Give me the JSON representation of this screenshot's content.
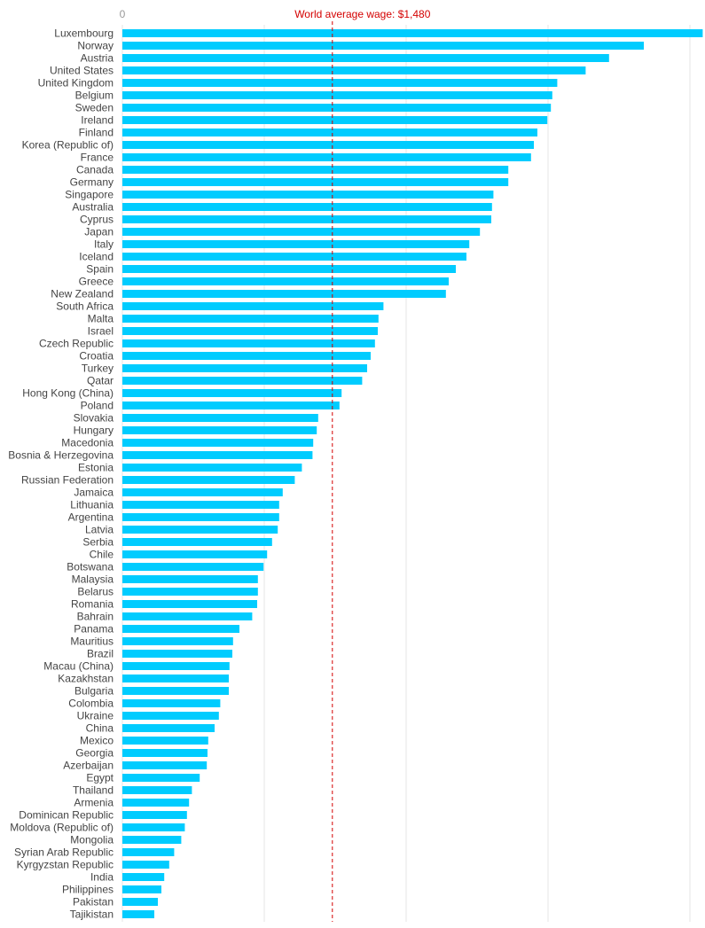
{
  "chart_data": {
    "type": "bar",
    "orientation": "horizontal",
    "title": "",
    "xlabel": "",
    "ylabel": "",
    "xlim": [
      0,
      4100
    ],
    "grid": true,
    "gridlines": [
      0,
      1000,
      2000,
      3000,
      4000
    ],
    "tick_labels": [
      "0"
    ],
    "bar_color": "#00CCFF",
    "reference_line": {
      "value": 1480,
      "label": "World average wage: $1,480",
      "color": "#D40000",
      "style": "dashed"
    },
    "categories": [
      "Luxembourg",
      "Norway",
      "Austria",
      "United States",
      "United Kingdom",
      "Belgium",
      "Sweden",
      "Ireland",
      "Finland",
      "Korea (Republic of)",
      "France",
      "Canada",
      "Germany",
      "Singapore",
      "Australia",
      "Cyprus",
      "Japan",
      "Italy",
      "Iceland",
      "Spain",
      "Greece",
      "New Zealand",
      "South Africa",
      "Malta",
      "Israel",
      "Czech Republic",
      "Croatia",
      "Turkey",
      "Qatar",
      "Hong Kong (China)",
      "Poland",
      "Slovakia",
      "Hungary",
      "Macedonia",
      "Bosnia & Herzegovina",
      "Estonia",
      "Russian Federation",
      "Jamaica",
      "Lithuania",
      "Argentina",
      "Latvia",
      "Serbia",
      "Chile",
      "Botswana",
      "Malaysia",
      "Belarus",
      "Romania",
      "Bahrain",
      "Panama",
      "Mauritius",
      "Brazil",
      "Macau (China)",
      "Kazakhstan",
      "Bulgaria",
      "Colombia",
      "Ukraine",
      "China",
      "Mexico",
      "Georgia",
      "Azerbaijan",
      "Egypt",
      "Thailand",
      "Armenia",
      "Dominican Republic",
      "Moldova (Republic of)",
      "Mongolia",
      "Syrian Arab Republic",
      "Kyrgyzstan Republic",
      "India",
      "Philippines",
      "Pakistan",
      "Tajikistan"
    ],
    "values": [
      4090,
      3675,
      3430,
      3265,
      3065,
      3030,
      3020,
      2995,
      2925,
      2900,
      2880,
      2720,
      2720,
      2615,
      2605,
      2600,
      2520,
      2445,
      2425,
      2350,
      2300,
      2280,
      1840,
      1805,
      1800,
      1780,
      1750,
      1725,
      1690,
      1545,
      1530,
      1380,
      1370,
      1345,
      1340,
      1265,
      1215,
      1130,
      1105,
      1105,
      1095,
      1055,
      1020,
      995,
      955,
      955,
      950,
      915,
      825,
      780,
      775,
      755,
      750,
      750,
      690,
      680,
      650,
      605,
      600,
      595,
      545,
      490,
      470,
      455,
      440,
      415,
      365,
      330,
      295,
      275,
      250,
      225
    ]
  }
}
